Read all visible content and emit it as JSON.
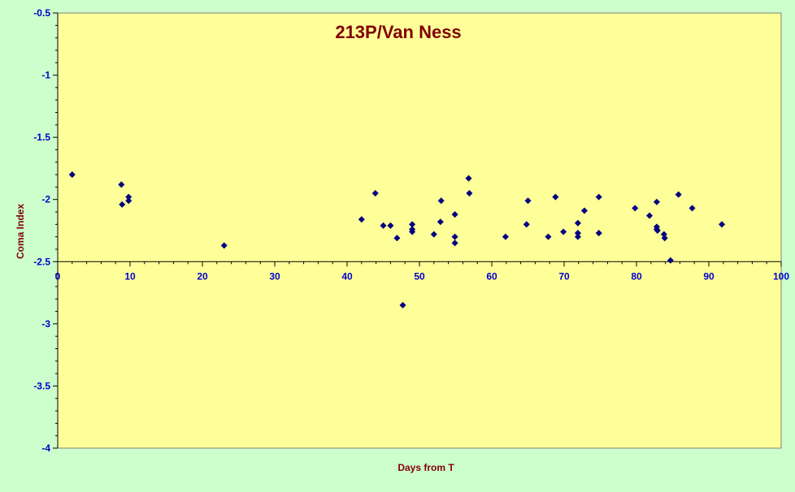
{
  "colors": {
    "page_bg": "#ccffcc",
    "plot_bg": "#ffff99",
    "marker": "#000080",
    "tick_label": "#0000cc",
    "title": "#800000",
    "axis": "#000000"
  },
  "chart_data": {
    "type": "scatter",
    "title": "213P/Van Ness",
    "xlabel": "Days from T",
    "ylabel": "Coma Index",
    "xlim": [
      0,
      100
    ],
    "ylim": [
      -4,
      -0.5
    ],
    "x_axis_crosses_at": -2.5,
    "grid": false,
    "legend": "none",
    "xticks": [
      0,
      10,
      20,
      30,
      40,
      50,
      60,
      70,
      80,
      90,
      100
    ],
    "yticks": [
      -0.5,
      -1,
      -1.5,
      -2,
      -2.5,
      -3,
      -3.5,
      -4
    ],
    "xtick_labels": [
      "0",
      "10",
      "20",
      "30",
      "40",
      "50",
      "60",
      "70",
      "80",
      "90",
      "100"
    ],
    "ytick_labels": [
      "-0.5",
      "-1",
      "-1.5",
      "-2",
      "-2.5",
      "-3",
      "-3.5",
      "-4"
    ],
    "marker": "diamond",
    "points": [
      [
        2,
        -1.8
      ],
      [
        8.8,
        -1.88
      ],
      [
        8.9,
        -2.04
      ],
      [
        9.8,
        -1.98
      ],
      [
        9.8,
        -2.01
      ],
      [
        23,
        -2.37
      ],
      [
        42,
        -2.16
      ],
      [
        43.9,
        -1.95
      ],
      [
        45,
        -2.21
      ],
      [
        46,
        -2.21
      ],
      [
        46.9,
        -2.31
      ],
      [
        47.7,
        -2.85
      ],
      [
        49,
        -2.2
      ],
      [
        49,
        -2.24
      ],
      [
        49,
        -2.26
      ],
      [
        52,
        -2.28
      ],
      [
        52.9,
        -2.18
      ],
      [
        53,
        -2.01
      ],
      [
        54.9,
        -2.12
      ],
      [
        54.9,
        -2.3
      ],
      [
        54.9,
        -2.35
      ],
      [
        56.8,
        -1.83
      ],
      [
        56.9,
        -1.95
      ],
      [
        61.9,
        -2.3
      ],
      [
        64.8,
        -2.2
      ],
      [
        65,
        -2.01
      ],
      [
        67.8,
        -2.3
      ],
      [
        68.8,
        -1.98
      ],
      [
        69.9,
        -2.26
      ],
      [
        71.9,
        -2.19
      ],
      [
        71.9,
        -2.27
      ],
      [
        71.9,
        -2.3
      ],
      [
        72.8,
        -2.09
      ],
      [
        74.8,
        -1.98
      ],
      [
        74.8,
        -2.27
      ],
      [
        79.8,
        -2.07
      ],
      [
        81.8,
        -2.13
      ],
      [
        82.8,
        -2.02
      ],
      [
        82.8,
        -2.22
      ],
      [
        82.8,
        -2.24
      ],
      [
        82.9,
        -2.25
      ],
      [
        83.8,
        -2.28
      ],
      [
        83.9,
        -2.31
      ],
      [
        84.7,
        -2.49
      ],
      [
        85.8,
        -1.96
      ],
      [
        87.7,
        -2.07
      ],
      [
        91.8,
        -2.2
      ]
    ]
  }
}
